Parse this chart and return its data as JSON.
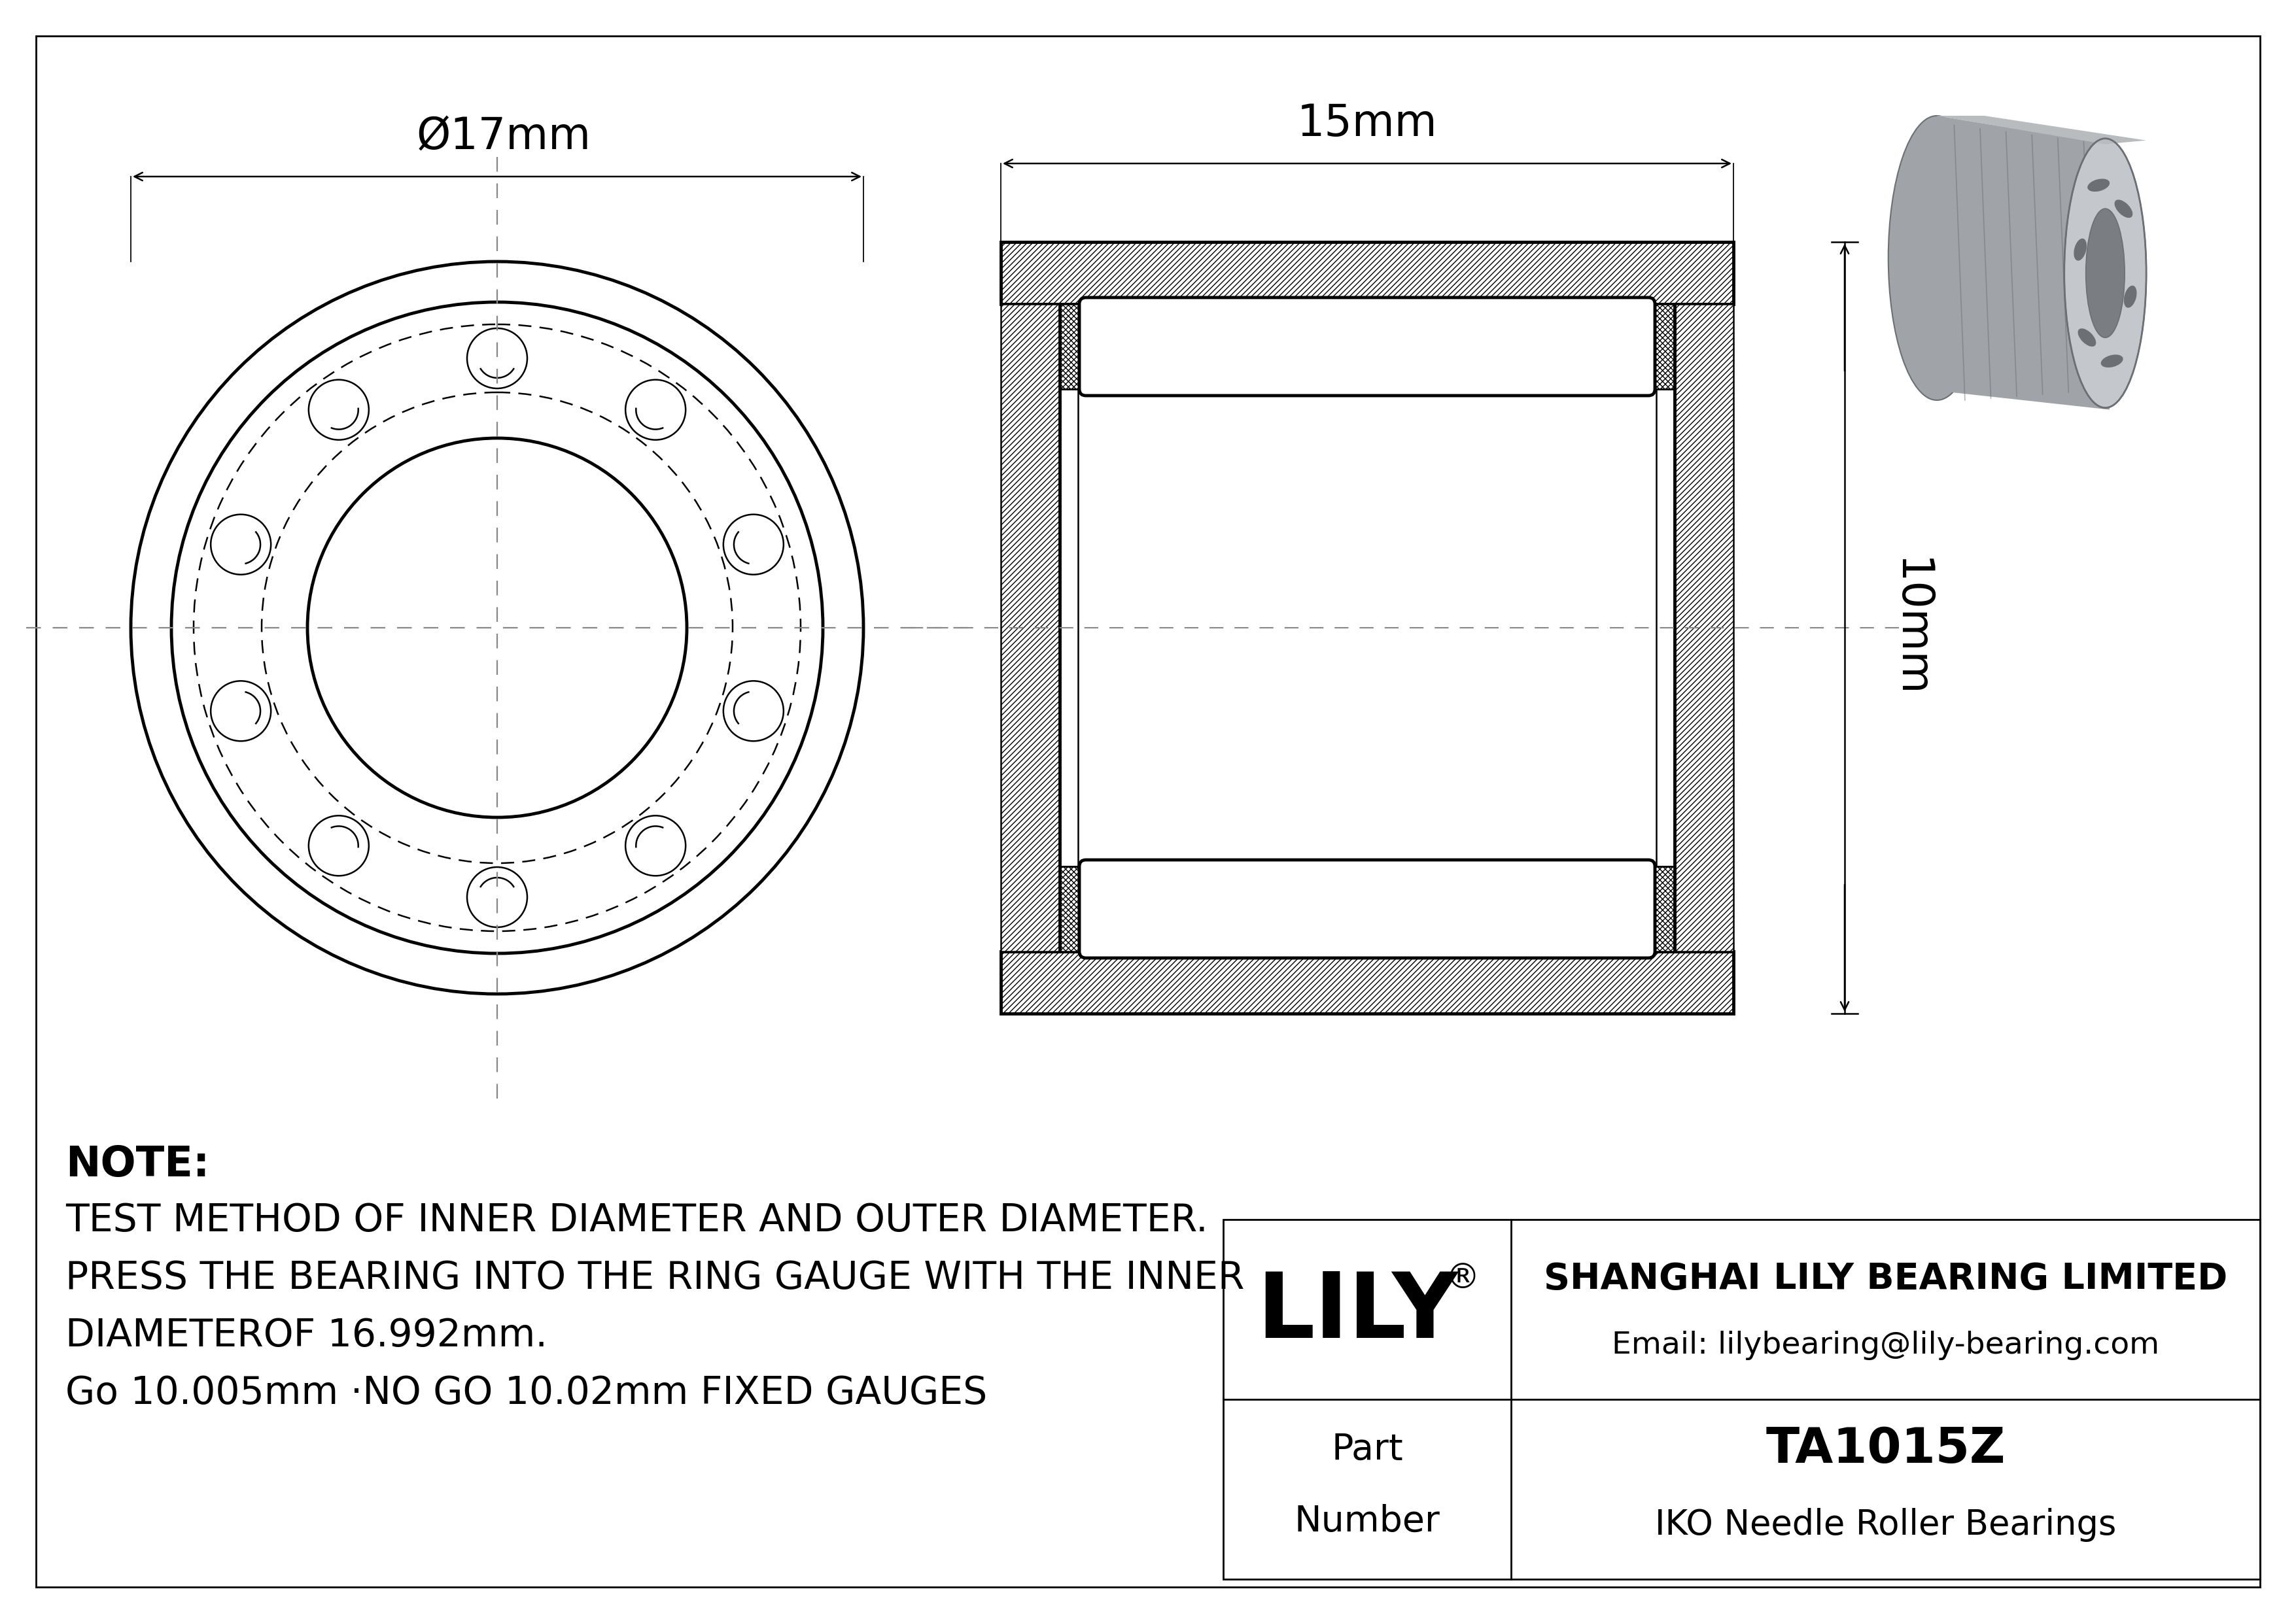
{
  "bg_color": "#ffffff",
  "lc": "#000000",
  "gray3d": "#a0a0a0",
  "gray3d_light": "#c0c0c0",
  "gray3d_dark": "#808080",
  "gray3d_inner": "#888888",
  "dash_color": "#888888",
  "part_number": "TA1015Z",
  "bearing_type": "IKO Needle Roller Bearings",
  "company": "SHANGHAI LILY BEARING LIMITED",
  "email": "Email: lilybearing@lily-bearing.com",
  "dim_od": "Ø17mm",
  "dim_width": "15mm",
  "dim_height": "10mm",
  "note_lines": [
    "NOTE:",
    "TEST METHOD OF INNER DIAMETER AND OUTER DIAMETER.",
    "PRESS THE BEARING INTO THE RING GAUGE WITH THE INNER",
    "DIAMETEROF 16.992mm.",
    "Go 10.005mm ·NO GO 10.02mm FIXED GAUGES"
  ],
  "lw": 3.5,
  "lw_t": 1.8,
  "lw_b": 2.0
}
